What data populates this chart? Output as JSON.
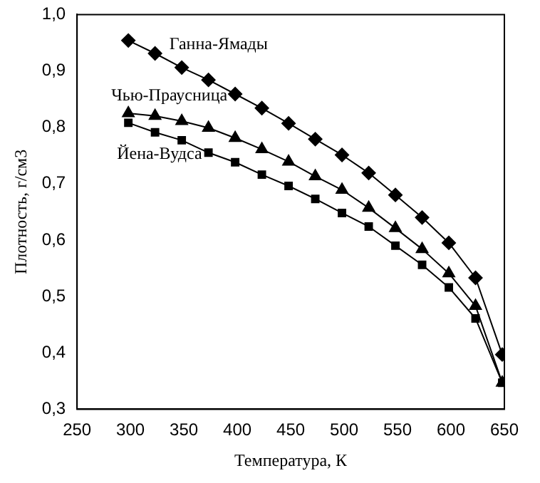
{
  "chart_data": {
    "type": "line",
    "xlabel": "Температура, К",
    "ylabel": "Плотность, г/см3",
    "x": [
      298,
      323,
      348,
      373,
      398,
      423,
      448,
      473,
      498,
      523,
      548,
      573,
      598,
      623,
      648
    ],
    "xlim": [
      250,
      650
    ],
    "xticks": [
      250,
      300,
      350,
      400,
      450,
      500,
      550,
      600,
      650
    ],
    "ylim": [
      0.3,
      1.0
    ],
    "yticks": [
      {
        "value": 0.3,
        "label": "0,3"
      },
      {
        "value": 0.4,
        "label": "0,4"
      },
      {
        "value": 0.5,
        "label": "0,5"
      },
      {
        "value": 0.6,
        "label": "0,6"
      },
      {
        "value": 0.7,
        "label": "0,7"
      },
      {
        "value": 0.8,
        "label": "0,8"
      },
      {
        "value": 0.9,
        "label": "0,9"
      },
      {
        "value": 1.0,
        "label": "1,0"
      }
    ],
    "grid": false,
    "legend": false,
    "line_style": "solid",
    "series": [
      {
        "name": "Ганна-Ямады",
        "color": "#000000",
        "marker": "diamond",
        "values": [
          0.954,
          0.931,
          0.906,
          0.884,
          0.859,
          0.834,
          0.807,
          0.779,
          0.751,
          0.719,
          0.68,
          0.64,
          0.595,
          0.533,
          0.397
        ]
      },
      {
        "name": "Чью-Праусница",
        "color": "#000000",
        "marker": "triangle",
        "values": [
          0.825,
          0.82,
          0.811,
          0.799,
          0.781,
          0.761,
          0.739,
          0.713,
          0.689,
          0.657,
          0.621,
          0.584,
          0.541,
          0.483,
          0.347
        ]
      },
      {
        "name": "Йена-Вудса",
        "color": "#000000",
        "marker": "square",
        "values": [
          0.808,
          0.791,
          0.777,
          0.755,
          0.738,
          0.716,
          0.696,
          0.673,
          0.648,
          0.624,
          0.59,
          0.556,
          0.516,
          0.461,
          0.347
        ]
      }
    ]
  }
}
